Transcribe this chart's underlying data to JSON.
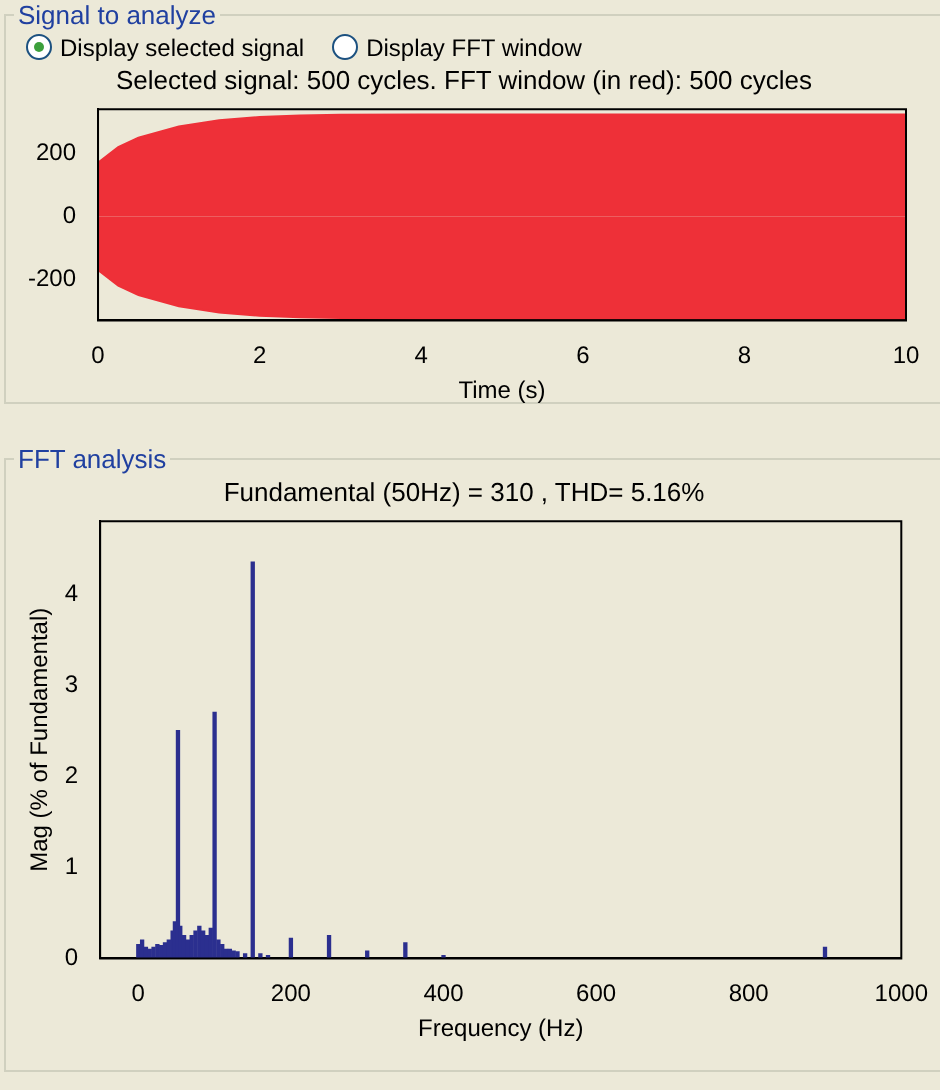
{
  "chart_data": [
    {
      "type": "area",
      "title": "Selected signal: 500 cycles. FFT window (in red): 500 cycles",
      "xlabel": "Time (s)",
      "annotations": [
        "Signal to analyze",
        "Display selected signal",
        "Display FFT window"
      ],
      "x": [
        0,
        0.25,
        0.5,
        1,
        1.5,
        2,
        2.5,
        3,
        4,
        5,
        6,
        7,
        8,
        9,
        10
      ],
      "series": [
        {
          "color": "#ee3038",
          "values": [
            170,
            220,
            250,
            285,
            305,
            315,
            320,
            322,
            323,
            323,
            323,
            323,
            323,
            323,
            323
          ]
        },
        {
          "color": "#ee3038",
          "values": [
            -170,
            -220,
            -250,
            -285,
            -305,
            -315,
            -320,
            -322,
            -323,
            -323,
            -323,
            -323,
            -323,
            -323,
            -323
          ]
        }
      ],
      "xlim": [
        0,
        10
      ],
      "xticks": [
        0,
        2,
        4,
        6,
        8,
        10
      ],
      "ylim": [
        -330,
        340
      ],
      "yticks": [
        -200,
        0,
        200
      ],
      "grid": false,
      "legend": false
    },
    {
      "type": "bar",
      "title": "Fundamental (50Hz) = 310 , THD= 5.16%",
      "xlabel": "Frequency (Hz)",
      "ylabel": "Mag (% of Fundamental)",
      "annotations": [
        "FFT analysis"
      ],
      "x": [
        0,
        5,
        10,
        15,
        20,
        25,
        30,
        35,
        40,
        45,
        48,
        50,
        52,
        55,
        60,
        65,
        70,
        75,
        80,
        85,
        90,
        95,
        100,
        105,
        110,
        115,
        120,
        125,
        130,
        140,
        150,
        160,
        170,
        200,
        250,
        300,
        350,
        400,
        900
      ],
      "values": [
        0.15,
        0.2,
        0.12,
        0.1,
        0.12,
        0.15,
        0.14,
        0.17,
        0.2,
        0.3,
        0.4,
        null,
        2.5,
        0.35,
        0.25,
        0.2,
        0.25,
        0.3,
        0.35,
        0.3,
        0.25,
        0.33,
        2.7,
        0.2,
        0.15,
        0.1,
        0.1,
        0.08,
        0.07,
        0.05,
        4.35,
        0.05,
        0.03,
        0.22,
        0.25,
        0.08,
        0.17,
        0.03,
        0.12
      ],
      "color": "#2b2f8f",
      "xlim": [
        -50,
        1000
      ],
      "xticks": [
        0,
        200,
        400,
        600,
        800,
        1000
      ],
      "ylim": [
        0,
        4.8
      ],
      "yticks": [
        0,
        1,
        2,
        3,
        4
      ],
      "grid": false,
      "legend": false
    }
  ]
}
